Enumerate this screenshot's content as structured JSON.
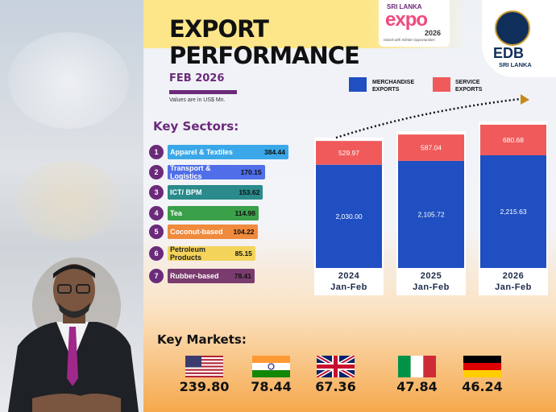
{
  "header": {
    "title_line1": "EXPORT",
    "title_line2": "PERFORMANCE",
    "period": "FEB 2026",
    "units_note": "Values are in US$ Mn."
  },
  "logos": {
    "expo_top": "SRI LANKA",
    "expo_word": "expo",
    "expo_year": "2026",
    "expo_tagline": "Island with Infinite Opportunities",
    "edb_name": "EDB",
    "edb_country": "SRI LANKA"
  },
  "legend": {
    "merchandise_line1": "MERCHANDISE",
    "merchandise_line2": "EXPORTS",
    "service_line1": "SERVICE",
    "service_line2": "EXPORTS"
  },
  "key_sectors": {
    "heading": "Key Sectors:",
    "items": [
      {
        "num": "1",
        "label": "Apparel & Textiles",
        "value": "384.44",
        "color": "#3aa8e8"
      },
      {
        "num": "2",
        "label": "Transport & Logistics",
        "value": "170.15",
        "color": "#4f6ee8"
      },
      {
        "num": "3",
        "label": "ICT/ BPM",
        "value": "153.62",
        "color": "#2a8a8c"
      },
      {
        "num": "4",
        "label": "Tea",
        "value": "114.98",
        "color": "#3aa04a"
      },
      {
        "num": "5",
        "label": "Coconut-based",
        "value": "104.22",
        "color": "#f08a3c"
      },
      {
        "num": "6",
        "label": "Petroleum Products",
        "value": "85.15",
        "color": "#f3d35a"
      },
      {
        "num": "7",
        "label": "Rubber-based",
        "value": "78.41",
        "color": "#7a3c6e"
      }
    ]
  },
  "key_markets": {
    "heading": "Key Markets:",
    "items": [
      {
        "flag": "usa-flag",
        "value": "239.80"
      },
      {
        "flag": "india-flag",
        "value": "78.44"
      },
      {
        "flag": "uk-flag",
        "value": "67.36"
      },
      {
        "flag": "italy-flag",
        "value": "47.84"
      },
      {
        "flag": "germany-flag",
        "value": "46.24"
      }
    ]
  },
  "colors": {
    "merchandise": "#1f4fc1",
    "service": "#f05a5a",
    "accent_purple": "#6b2a7a"
  },
  "chart_data": {
    "type": "bar",
    "stacked": true,
    "categories": [
      "2024",
      "2025",
      "2026"
    ],
    "category_sublabels": [
      "Jan-Feb",
      "Jan-Feb",
      "Jan-Feb"
    ],
    "series": [
      {
        "name": "MERCHANDISE EXPORTS",
        "values": [
          2030.0,
          2105.72,
          2215.63
        ],
        "labels": [
          "2,030.00",
          "2,105.72",
          "2,215.63"
        ]
      },
      {
        "name": "SERVICE EXPORTS",
        "values": [
          529.97,
          587.04,
          680.68
        ],
        "labels": [
          "529.97",
          "587.04",
          "680.68"
        ]
      }
    ],
    "trend_arrow": true
  }
}
